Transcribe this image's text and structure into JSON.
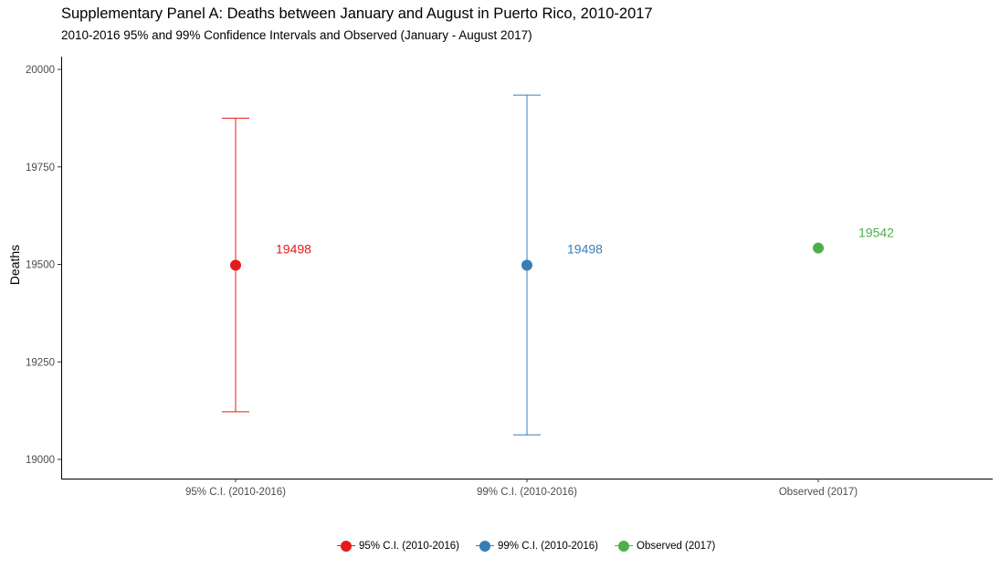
{
  "chart_data": {
    "type": "errorbar-point",
    "title": "Supplementary Panel A: Deaths between January and August in Puerto Rico, 2010-2017",
    "subtitle": "2010-2016 95% and 99% Confidence Intervals and Observed (January - August 2017)",
    "xlabel": "",
    "ylabel": "Deaths",
    "ylim": [
      18950,
      20050
    ],
    "yticks": [
      19000,
      19250,
      19500,
      19750,
      20000
    ],
    "grid": false,
    "legend_position": "bottom",
    "categories": [
      "95% C.I. (2010-2016)",
      "99% C.I. (2010-2016)",
      "Observed (2017)"
    ],
    "series": [
      {
        "name": "95% C.I. (2010-2016)",
        "category": "95% C.I. (2010-2016)",
        "value": 19498,
        "lower": 19122,
        "upper": 19875,
        "label": "19498",
        "color": "#E41A1C"
      },
      {
        "name": "99% C.I. (2010-2016)",
        "category": "99% C.I. (2010-2016)",
        "value": 19498,
        "lower": 19063,
        "upper": 19934,
        "label": "19498",
        "color": "#377EB8"
      },
      {
        "name": "Observed (2017)",
        "category": "Observed (2017)",
        "value": 19542,
        "lower": null,
        "upper": null,
        "label": "19542",
        "color": "#4DAF4A"
      }
    ]
  }
}
